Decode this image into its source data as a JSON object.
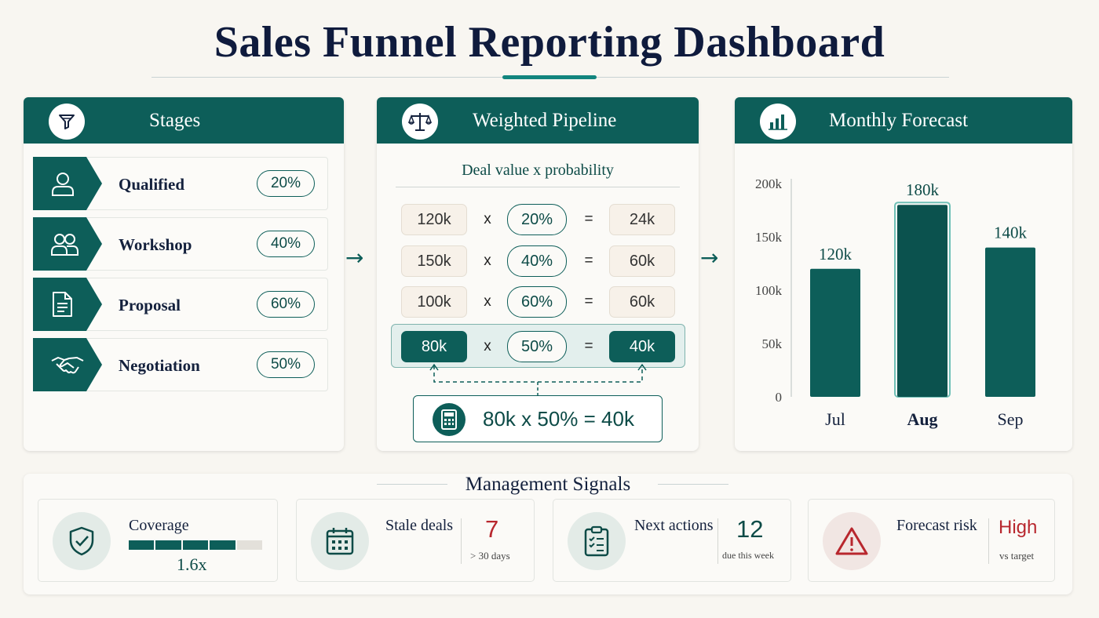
{
  "title": "Sales Funnel Reporting Dashboard",
  "colors": {
    "primary": "#0d5e59",
    "accent": "#12857e",
    "risk": "#b8272e",
    "background": "#f8f6f1"
  },
  "stages": {
    "header": "Stages",
    "icon": "funnel-icon",
    "items": [
      {
        "label": "Qualified",
        "pct": "20%",
        "icon": "user-icon"
      },
      {
        "label": "Workshop",
        "pct": "40%",
        "icon": "users-icon"
      },
      {
        "label": "Proposal",
        "pct": "60%",
        "icon": "document-icon"
      },
      {
        "label": "Negotiation",
        "pct": "50%",
        "icon": "handshake-icon"
      }
    ]
  },
  "pipeline": {
    "header": "Weighted Pipeline",
    "icon": "scale-icon",
    "subtitle": "Deal value x probability",
    "op_times": "x",
    "op_equals": "=",
    "rows": [
      {
        "value": "120k",
        "prob": "20%",
        "result": "24k",
        "highlight": false
      },
      {
        "value": "150k",
        "prob": "40%",
        "result": "60k",
        "highlight": false
      },
      {
        "value": "100k",
        "prob": "60%",
        "result": "60k",
        "highlight": false
      },
      {
        "value": "80k",
        "prob": "50%",
        "result": "40k",
        "highlight": true
      }
    ],
    "formula": "80k x 50% = 40k",
    "formula_icon": "calculator-icon"
  },
  "forecast": {
    "header": "Monthly Forecast",
    "icon": "bar-chart-icon"
  },
  "chart_data": {
    "type": "bar",
    "categories": [
      "Jul",
      "Aug",
      "Sep"
    ],
    "values": [
      120,
      180,
      140
    ],
    "value_labels": [
      "120k",
      "180k",
      "140k"
    ],
    "highlight": "Aug",
    "yticks": [
      "0",
      "50k",
      "100k",
      "150k",
      "200k"
    ],
    "ylim": [
      0,
      200
    ],
    "title": "",
    "xlabel": "",
    "ylabel": "",
    "grid": false
  },
  "signals": {
    "title": "Management Signals",
    "coverage": {
      "label": "Coverage",
      "value": "1.6x",
      "bar_filled": 4,
      "bar_segments": 5,
      "icon": "shield-check-icon"
    },
    "stale": {
      "label": "Stale deals",
      "value": "7",
      "note": "> 30 days",
      "icon": "calendar-icon"
    },
    "actions": {
      "label": "Next actions",
      "value": "12",
      "note": "due this week",
      "icon": "clipboard-check-icon"
    },
    "risk": {
      "label": "Forecast risk",
      "value": "High",
      "note": "vs target",
      "icon": "warning-icon"
    }
  }
}
